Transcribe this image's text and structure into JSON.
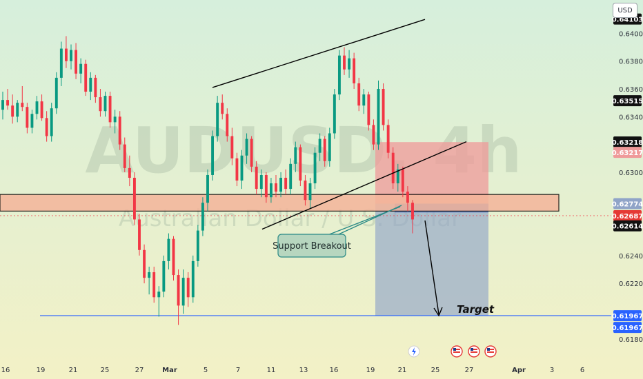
{
  "chart_data": {
    "type": "candlestick",
    "symbol": "AUDUSD",
    "watermark_title": "AUDUSD, 4h",
    "watermark_subtitle": "Australian Dollar / U.S. Dollar",
    "currency": "USD",
    "y_range": [
      0.6166,
      0.6424
    ],
    "y_ticks": [
      "0.64000",
      "0.63800",
      "0.63600",
      "0.63400",
      "0.63000",
      "0.62400",
      "0.62200",
      "0.61800"
    ],
    "x_ticks": [
      "16",
      "19",
      "21",
      "25",
      "27",
      "Mar",
      "5",
      "7",
      "11",
      "13",
      "16",
      "19",
      "21",
      "25",
      "27",
      "Apr",
      "3",
      "6"
    ],
    "price_tags": [
      {
        "label": "0.64103",
        "value": 0.64103,
        "color": "#111111"
      },
      {
        "label": "0.63515",
        "value": 0.63515,
        "color": "#111111"
      },
      {
        "label": "0.63218",
        "value": 0.63218,
        "color": "#111111"
      },
      {
        "label": "0.63217",
        "value": 0.63217,
        "color": "#ef9a9a"
      },
      {
        "label": "0.62774",
        "value": 0.62774,
        "color": "#90a4c8"
      },
      {
        "label": "0.62687",
        "value": 0.62687,
        "color": "#e53935"
      },
      {
        "label": "0.62614",
        "value": 0.62614,
        "color": "#111111"
      },
      {
        "label": "0.61967",
        "value": 0.61967,
        "color": "#2962ff"
      },
      {
        "label": "0.61967",
        "value": 0.61967,
        "color": "#2962ff"
      }
    ],
    "candles": [
      [
        0.6345,
        0.6358,
        0.6338,
        0.6352
      ],
      [
        0.6352,
        0.636,
        0.6345,
        0.6348
      ],
      [
        0.6348,
        0.6356,
        0.6335,
        0.634
      ],
      [
        0.634,
        0.6352,
        0.6336,
        0.635
      ],
      [
        0.635,
        0.6362,
        0.6344,
        0.6347
      ],
      [
        0.6347,
        0.635,
        0.6328,
        0.6332
      ],
      [
        0.6332,
        0.6345,
        0.6328,
        0.6342
      ],
      [
        0.6342,
        0.6355,
        0.6338,
        0.6351
      ],
      [
        0.6351,
        0.6356,
        0.6337,
        0.6339
      ],
      [
        0.6339,
        0.6344,
        0.6322,
        0.6326
      ],
      [
        0.6326,
        0.635,
        0.6322,
        0.6346
      ],
      [
        0.6346,
        0.6372,
        0.6342,
        0.6368
      ],
      [
        0.6368,
        0.6394,
        0.6362,
        0.6389
      ],
      [
        0.6389,
        0.6398,
        0.6375,
        0.638
      ],
      [
        0.638,
        0.6392,
        0.6374,
        0.6388
      ],
      [
        0.6388,
        0.6393,
        0.6367,
        0.6371
      ],
      [
        0.6371,
        0.6382,
        0.6364,
        0.6378
      ],
      [
        0.6378,
        0.6381,
        0.6355,
        0.6358
      ],
      [
        0.6358,
        0.6372,
        0.6352,
        0.6368
      ],
      [
        0.6368,
        0.637,
        0.635,
        0.6354
      ],
      [
        0.6354,
        0.636,
        0.634,
        0.6344
      ],
      [
        0.6344,
        0.6358,
        0.634,
        0.6355
      ],
      [
        0.6355,
        0.6358,
        0.6332,
        0.6336
      ],
      [
        0.6336,
        0.6345,
        0.6328,
        0.634
      ],
      [
        0.634,
        0.6344,
        0.6316,
        0.632
      ],
      [
        0.632,
        0.6325,
        0.63,
        0.6303
      ],
      [
        0.6303,
        0.6312,
        0.629,
        0.6296
      ],
      [
        0.6296,
        0.63,
        0.6262,
        0.6266
      ],
      [
        0.6266,
        0.627,
        0.624,
        0.6244
      ],
      [
        0.6244,
        0.6248,
        0.622,
        0.6224
      ],
      [
        0.6224,
        0.6232,
        0.6212,
        0.6228
      ],
      [
        0.6228,
        0.6232,
        0.6206,
        0.621
      ],
      [
        0.621,
        0.6218,
        0.6196,
        0.6214
      ],
      [
        0.6214,
        0.624,
        0.621,
        0.6236
      ],
      [
        0.6236,
        0.6256,
        0.623,
        0.6252
      ],
      [
        0.6252,
        0.6254,
        0.6222,
        0.6226
      ],
      [
        0.6226,
        0.623,
        0.619,
        0.6204
      ],
      [
        0.6204,
        0.623,
        0.6198,
        0.6224
      ],
      [
        0.6224,
        0.6228,
        0.6203,
        0.621
      ],
      [
        0.621,
        0.624,
        0.6206,
        0.6236
      ],
      [
        0.6236,
        0.6262,
        0.6232,
        0.6258
      ],
      [
        0.6258,
        0.6282,
        0.6254,
        0.6278
      ],
      [
        0.6278,
        0.6302,
        0.6272,
        0.6298
      ],
      [
        0.6298,
        0.633,
        0.6294,
        0.6326
      ],
      [
        0.6326,
        0.6355,
        0.6322,
        0.635
      ],
      [
        0.635,
        0.6356,
        0.6338,
        0.6342
      ],
      [
        0.6342,
        0.6346,
        0.6322,
        0.6326
      ],
      [
        0.6326,
        0.6332,
        0.6305,
        0.631
      ],
      [
        0.631,
        0.6314,
        0.629,
        0.6294
      ],
      [
        0.6294,
        0.6316,
        0.6288,
        0.6312
      ],
      [
        0.6312,
        0.6328,
        0.6306,
        0.6324
      ],
      [
        0.6324,
        0.6326,
        0.63,
        0.6304
      ],
      [
        0.6304,
        0.6308,
        0.6284,
        0.6288
      ],
      [
        0.6288,
        0.6302,
        0.6282,
        0.6298
      ],
      [
        0.6298,
        0.63,
        0.6278,
        0.6282
      ],
      [
        0.6282,
        0.6296,
        0.6278,
        0.6292
      ],
      [
        0.6292,
        0.6298,
        0.6282,
        0.6286
      ],
      [
        0.6286,
        0.63,
        0.6282,
        0.6296
      ],
      [
        0.6296,
        0.6302,
        0.6284,
        0.6288
      ],
      [
        0.6288,
        0.631,
        0.6284,
        0.6306
      ],
      [
        0.6306,
        0.6322,
        0.63,
        0.6318
      ],
      [
        0.6318,
        0.632,
        0.629,
        0.6294
      ],
      [
        0.6294,
        0.6298,
        0.6276,
        0.628
      ],
      [
        0.628,
        0.6296,
        0.6274,
        0.6292
      ],
      [
        0.6292,
        0.6318,
        0.6288,
        0.6314
      ],
      [
        0.6314,
        0.6328,
        0.6308,
        0.6324
      ],
      [
        0.6324,
        0.6326,
        0.6304,
        0.6308
      ],
      [
        0.6308,
        0.6332,
        0.6304,
        0.6328
      ],
      [
        0.6328,
        0.636,
        0.6324,
        0.6356
      ],
      [
        0.6356,
        0.6388,
        0.6352,
        0.6384
      ],
      [
        0.6384,
        0.639,
        0.637,
        0.6374
      ],
      [
        0.6374,
        0.6388,
        0.6368,
        0.6382
      ],
      [
        0.6382,
        0.6386,
        0.636,
        0.6364
      ],
      [
        0.6364,
        0.6368,
        0.6344,
        0.6348
      ],
      [
        0.6348,
        0.636,
        0.6342,
        0.6356
      ],
      [
        0.6356,
        0.6358,
        0.633,
        0.6334
      ],
      [
        0.6334,
        0.6338,
        0.6316,
        0.632
      ],
      [
        0.632,
        0.6366,
        0.6316,
        0.636
      ],
      [
        0.636,
        0.6364,
        0.633,
        0.6334
      ],
      [
        0.6334,
        0.6338,
        0.631,
        0.6314
      ],
      [
        0.6314,
        0.6318,
        0.6288,
        0.6292
      ],
      [
        0.6292,
        0.6306,
        0.6286,
        0.6302
      ],
      [
        0.6302,
        0.6304,
        0.6282,
        0.6286
      ],
      [
        0.6286,
        0.629,
        0.6272,
        0.6278
      ],
      [
        0.6278,
        0.628,
        0.6256,
        0.6266
      ]
    ],
    "annotations": {
      "support_zone": [
        0.6272,
        0.6284
      ],
      "lower_channel_line": [
        [
          0.6259,
          0.6284
        ],
        [
          0.6288,
          0.6322
        ]
      ],
      "upper_channel_line": [
        [
          0.6354,
          0.641
        ],
        [
          0.638,
          0.641
        ]
      ],
      "short_position": {
        "stop_top": 0.63217,
        "entry": 0.62774,
        "target": 0.61967
      },
      "callout": "Support Breakout",
      "target_label": "Target",
      "target_line": 0.61967
    }
  }
}
